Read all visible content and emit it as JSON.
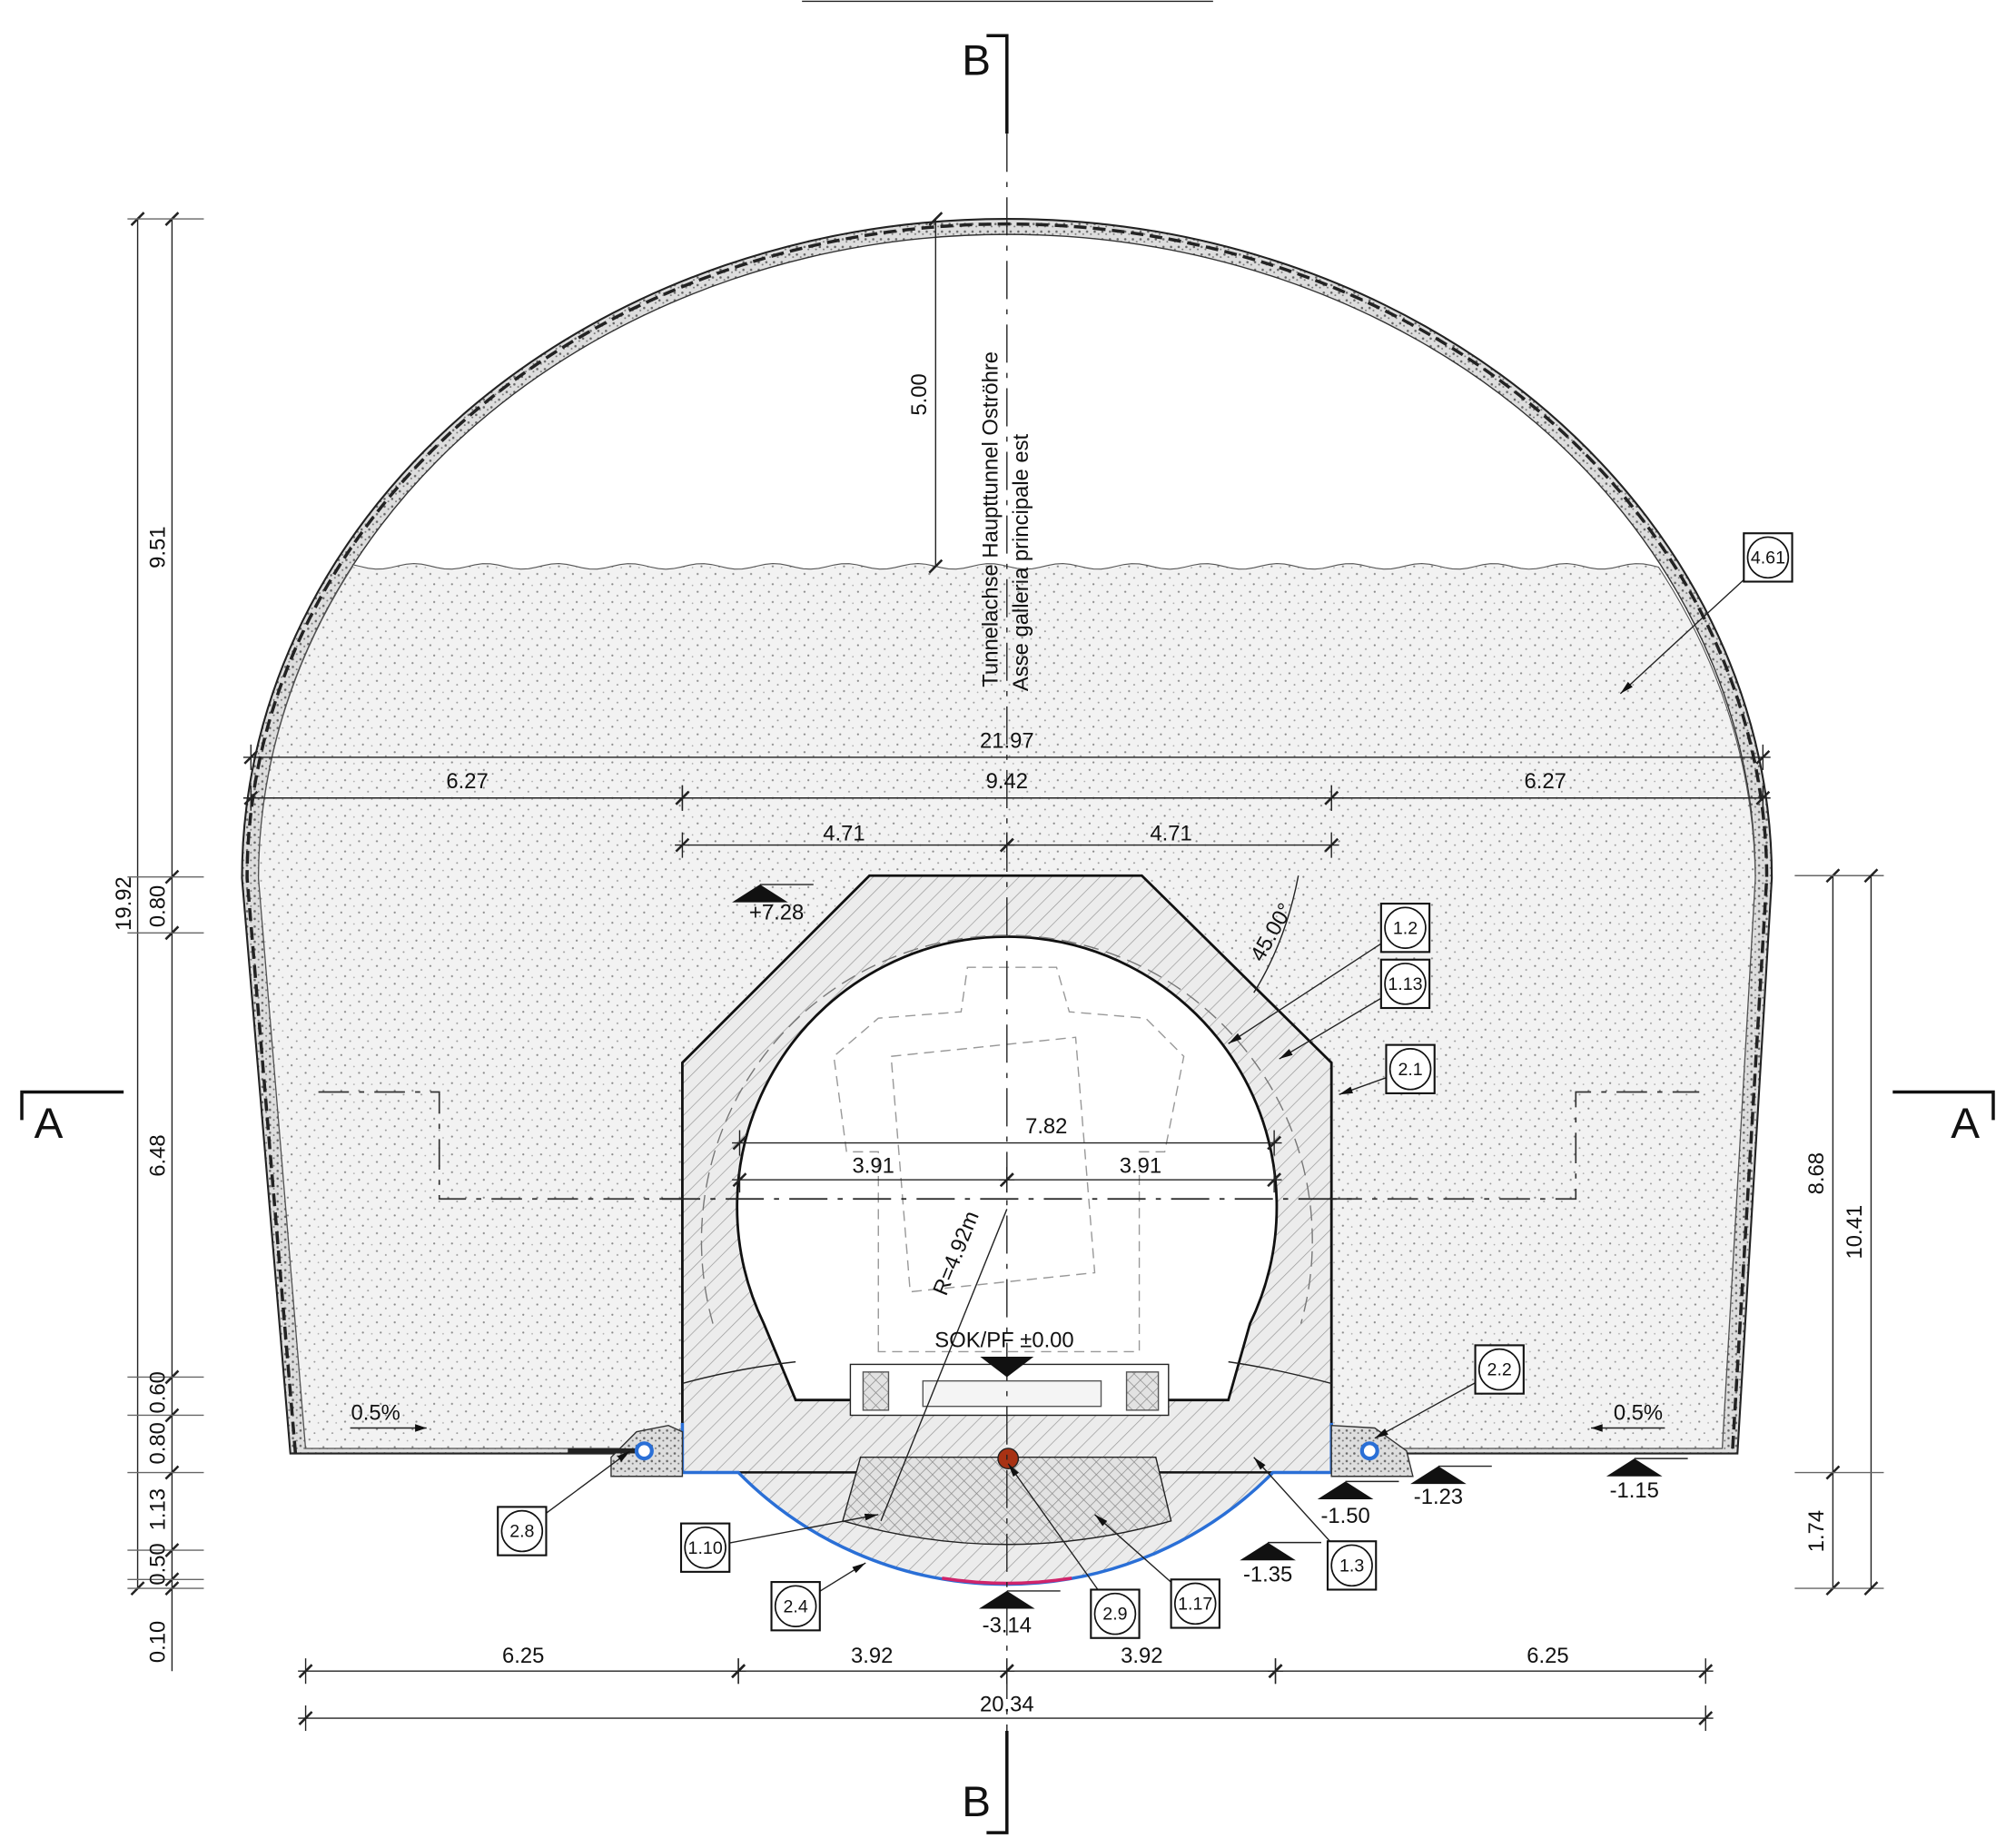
{
  "section_marks": {
    "left": "A",
    "right": "A",
    "top": "B",
    "bottom": "B"
  },
  "axis_label": {
    "line1": "Tunnelachse Haupttunnel Oströhre",
    "line2": "Asse galleria principale est"
  },
  "horizontal_dimensions": [
    "21.97",
    "6.27",
    "9.42",
    "6.27",
    "4.71",
    "4.71",
    "7.82",
    "3.91",
    "3.91",
    "6.25",
    "3.92",
    "3.92",
    "6.25",
    "20.34"
  ],
  "vertical_dimensions_left": [
    "19.92",
    "9.51",
    "0.80",
    "6.48",
    "0.60",
    "0.80",
    "1.13",
    "0.50",
    "0.10",
    "5.00"
  ],
  "vertical_dimensions_right": [
    "8.68",
    "10.41",
    "1.74"
  ],
  "annotations": {
    "angle": "45.00°",
    "radius": "R=4.92m",
    "rail_level": "SOK/PF ±0.00"
  },
  "elevations": [
    "+7.28",
    "-1.50",
    "-1.23",
    "-1.15",
    "-1.35",
    "-3.14"
  ],
  "slopes": [
    "0.5%",
    "0.5%"
  ],
  "callouts": [
    "4.61",
    "1.2",
    "1.13",
    "2.1",
    "2.2",
    "2.8",
    "1.10",
    "2.4",
    "2.9",
    "1.17",
    "1.3"
  ]
}
